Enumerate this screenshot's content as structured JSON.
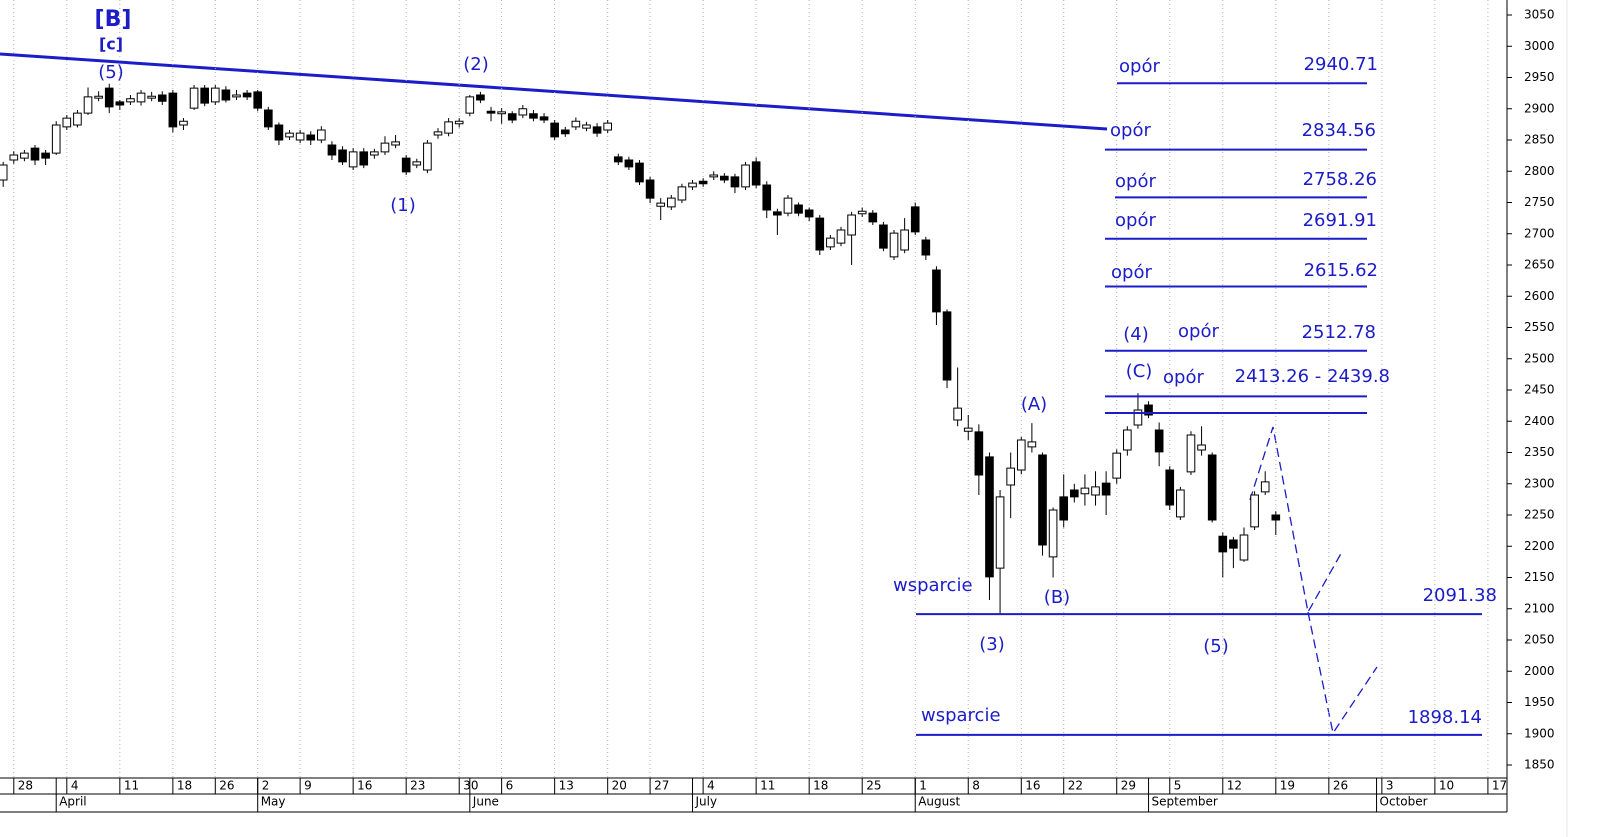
{
  "chart_data": {
    "type": "candlestick",
    "open": [
      2786,
      2818,
      2821,
      2837,
      2829,
      2829,
      2871,
      2874,
      2893,
      2917,
      2933,
      2911,
      2911,
      2911,
      2917,
      2922,
      2925,
      2874,
      2901,
      2933,
      2911,
      2930,
      2919,
      2925,
      2927,
      2898,
      2874,
      2855,
      2850,
      2858,
      2850,
      2842,
      2834,
      2807,
      2831,
      2826,
      2831,
      2842,
      2821,
      2810,
      2802,
      2858,
      2861,
      2876,
      2893,
      2922,
      2896,
      2892,
      2892,
      2890,
      2892,
      2887,
      2877,
      2866,
      2871,
      2869,
      2871,
      2866,
      2823,
      2818,
      2813,
      2786,
      2744,
      2743,
      2754,
      2775,
      2784,
      2791,
      2792,
      2791,
      2775,
      2815,
      2778,
      2735,
      2733,
      2746,
      2738,
      2725,
      2679,
      2685,
      2698,
      2732,
      2733,
      2714,
      2663,
      2674,
      2743,
      2690,
      2642,
      2575,
      2402,
      2384,
      2383,
      2343,
      2165,
      2298,
      2322,
      2359,
      2346,
      2183,
      2279,
      2290,
      2284,
      2282,
      2301,
      2309,
      2354,
      2394,
      2426,
      2386,
      2322,
      2247,
      2319,
      2354,
      2346,
      2216,
      2210,
      2178,
      2231,
      2287,
      2250
    ],
    "high": [
      2815,
      2832,
      2834,
      2842,
      2834,
      2880,
      2890,
      2898,
      2934,
      2928,
      2940,
      2914,
      2922,
      2930,
      2927,
      2928,
      2930,
      2885,
      2938,
      2938,
      2938,
      2936,
      2930,
      2930,
      2930,
      2903,
      2878,
      2866,
      2866,
      2864,
      2872,
      2848,
      2840,
      2837,
      2837,
      2836,
      2856,
      2858,
      2826,
      2820,
      2850,
      2869,
      2885,
      2885,
      2922,
      2927,
      2903,
      2901,
      2896,
      2906,
      2898,
      2893,
      2882,
      2871,
      2886,
      2879,
      2877,
      2882,
      2828,
      2823,
      2818,
      2791,
      2757,
      2762,
      2780,
      2786,
      2789,
      2800,
      2797,
      2796,
      2815,
      2822,
      2784,
      2740,
      2762,
      2750,
      2742,
      2730,
      2698,
      2711,
      2735,
      2742,
      2738,
      2719,
      2706,
      2725,
      2750,
      2695,
      2648,
      2579,
      2486,
      2410,
      2395,
      2350,
      2290,
      2350,
      2375,
      2397,
      2350,
      2262,
      2315,
      2300,
      2315,
      2320,
      2320,
      2355,
      2392,
      2445,
      2432,
      2398,
      2328,
      2295,
      2384,
      2392,
      2350,
      2222,
      2215,
      2230,
      2288,
      2320,
      2256
    ],
    "low": [
      2775,
      2812,
      2816,
      2810,
      2810,
      2826,
      2866,
      2870,
      2890,
      2912,
      2893,
      2898,
      2906,
      2905,
      2912,
      2906,
      2862,
      2866,
      2898,
      2904,
      2906,
      2910,
      2914,
      2914,
      2896,
      2866,
      2842,
      2850,
      2845,
      2842,
      2845,
      2818,
      2810,
      2802,
      2805,
      2820,
      2826,
      2837,
      2794,
      2805,
      2797,
      2852,
      2856,
      2870,
      2888,
      2909,
      2880,
      2876,
      2877,
      2885,
      2880,
      2877,
      2850,
      2855,
      2866,
      2864,
      2855,
      2861,
      2810,
      2802,
      2778,
      2749,
      2722,
      2738,
      2749,
      2770,
      2775,
      2786,
      2781,
      2765,
      2770,
      2773,
      2725,
      2698,
      2728,
      2728,
      2720,
      2666,
      2674,
      2680,
      2650,
      2727,
      2714,
      2672,
      2658,
      2669,
      2698,
      2658,
      2554,
      2453,
      2392,
      2370,
      2282,
      2114,
      2090,
      2245,
      2315,
      2350,
      2185,
      2150,
      2230,
      2270,
      2265,
      2265,
      2250,
      2300,
      2345,
      2388,
      2405,
      2328,
      2258,
      2242,
      2314,
      2345,
      2238,
      2150,
      2165,
      2175,
      2226,
      2282,
      2218
    ],
    "close": [
      2810,
      2826,
      2829,
      2818,
      2821,
      2874,
      2885,
      2893,
      2919,
      2920,
      2903,
      2906,
      2916,
      2925,
      2920,
      2912,
      2871,
      2880,
      2933,
      2909,
      2933,
      2914,
      2922,
      2919,
      2901,
      2871,
      2850,
      2861,
      2861,
      2850,
      2866,
      2826,
      2815,
      2831,
      2810,
      2831,
      2845,
      2847,
      2799,
      2815,
      2845,
      2863,
      2879,
      2880,
      2919,
      2914,
      2893,
      2895,
      2882,
      2900,
      2885,
      2882,
      2855,
      2860,
      2880,
      2874,
      2861,
      2877,
      2815,
      2807,
      2783,
      2757,
      2749,
      2757,
      2775,
      2781,
      2780,
      2794,
      2786,
      2775,
      2810,
      2778,
      2738,
      2730,
      2757,
      2733,
      2727,
      2674,
      2693,
      2706,
      2730,
      2736,
      2719,
      2677,
      2701,
      2706,
      2703,
      2666,
      2575,
      2466,
      2421,
      2389,
      2314,
      2151,
      2279,
      2325,
      2370,
      2367,
      2202,
      2258,
      2242,
      2279,
      2293,
      2295,
      2282,
      2349,
      2386,
      2418,
      2410,
      2351,
      2266,
      2290,
      2378,
      2362,
      2242,
      2191,
      2197,
      2218,
      2282,
      2303,
      2242
    ],
    "up_color": "#ffffff",
    "down_color": "#000000",
    "xlim": [
      -0.3,
      141.8
    ],
    "ylim": [
      1834,
      3074
    ],
    "yticks": [
      1850,
      1900,
      1950,
      2000,
      2050,
      2100,
      2150,
      2200,
      2250,
      2300,
      2350,
      2400,
      2450,
      2500,
      2550,
      2600,
      2650,
      2700,
      2750,
      2800,
      2850,
      2900,
      2950,
      3000,
      3050
    ],
    "xticks": [
      {
        "value": 1,
        "label": "28"
      },
      {
        "value": 6,
        "label": "4"
      },
      {
        "value": 11,
        "label": "11"
      },
      {
        "value": 16,
        "label": "18"
      },
      {
        "value": 20,
        "label": "26"
      },
      {
        "value": 24,
        "label": "2"
      },
      {
        "value": 28,
        "label": "9"
      },
      {
        "value": 33,
        "label": "16"
      },
      {
        "value": 38,
        "label": "23"
      },
      {
        "value": 43,
        "label": "30"
      },
      {
        "value": 47,
        "label": "6"
      },
      {
        "value": 52,
        "label": "13"
      },
      {
        "value": 57,
        "label": "20"
      },
      {
        "value": 61,
        "label": "27"
      },
      {
        "value": 66,
        "label": "4"
      },
      {
        "value": 71,
        "label": "11"
      },
      {
        "value": 76,
        "label": "18"
      },
      {
        "value": 81,
        "label": "25"
      },
      {
        "value": 86,
        "label": "1"
      },
      {
        "value": 91,
        "label": "8"
      },
      {
        "value": 96,
        "label": "16"
      },
      {
        "value": 100,
        "label": "22"
      },
      {
        "value": 105,
        "label": "29"
      },
      {
        "value": 110,
        "label": "5"
      },
      {
        "value": 115,
        "label": "12"
      },
      {
        "value": 120,
        "label": "19"
      },
      {
        "value": 125,
        "label": "26"
      },
      {
        "value": 130,
        "label": "3"
      },
      {
        "value": 135,
        "label": "10"
      },
      {
        "value": 140,
        "label": "17"
      }
    ],
    "month_ticks": [
      {
        "value": 5,
        "label": "April"
      },
      {
        "value": 24,
        "label": "May"
      },
      {
        "value": 44,
        "label": "June"
      },
      {
        "value": 65,
        "label": "July"
      },
      {
        "value": 86,
        "label": "August"
      },
      {
        "value": 108,
        "label": "September"
      },
      {
        "value": 129.5,
        "label": "October"
      }
    ],
    "grid": "x",
    "annotation_color": "#1c1cc8",
    "annotations": [
      "[B]",
      "[c]",
      "(5)",
      "(2)",
      "(1)",
      "(4)",
      "(C)",
      "(A)",
      "(B)",
      "(3)",
      "(5)"
    ],
    "resistances": [
      {
        "label": "opór",
        "value": 2940.71
      },
      {
        "label": "opór",
        "value": 2834.56
      },
      {
        "label": "opór",
        "value": 2758.26
      },
      {
        "label": "opór",
        "value": 2691.91
      },
      {
        "label": "opór",
        "value": 2615.62
      },
      {
        "label": "opór",
        "value": 2512.78
      },
      {
        "label": "opór",
        "values": [
          2413.26,
          2439.8
        ],
        "value_label": "2413.26 - 2439.8"
      }
    ],
    "supports": [
      {
        "label": "wsparcie",
        "value": 2091.38
      },
      {
        "label": "wsparcie",
        "value": 1898.14
      }
    ]
  }
}
